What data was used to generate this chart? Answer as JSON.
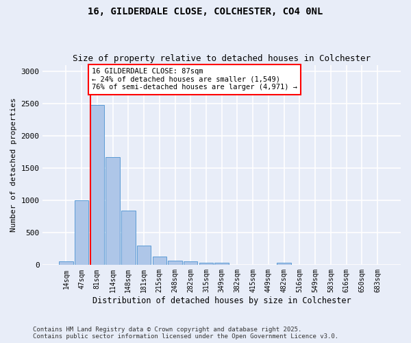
{
  "title_line1": "16, GILDERDALE CLOSE, COLCHESTER, CO4 0NL",
  "title_line2": "Size of property relative to detached houses in Colchester",
  "xlabel": "Distribution of detached houses by size in Colchester",
  "ylabel": "Number of detached properties",
  "categories": [
    "14sqm",
    "47sqm",
    "81sqm",
    "114sqm",
    "148sqm",
    "181sqm",
    "215sqm",
    "248sqm",
    "282sqm",
    "315sqm",
    "349sqm",
    "382sqm",
    "415sqm",
    "449sqm",
    "482sqm",
    "516sqm",
    "549sqm",
    "583sqm",
    "616sqm",
    "650sqm",
    "683sqm"
  ],
  "values": [
    55,
    1005,
    2480,
    1670,
    840,
    305,
    130,
    65,
    55,
    40,
    40,
    0,
    0,
    0,
    35,
    0,
    0,
    0,
    0,
    0,
    0
  ],
  "bar_color": "#aec6e8",
  "bar_edge_color": "#5b9bd5",
  "background_color": "#e8edf8",
  "grid_color": "#ffffff",
  "vline_color": "red",
  "annotation_text": "16 GILDERDALE CLOSE: 87sqm\n← 24% of detached houses are smaller (1,549)\n76% of semi-detached houses are larger (4,971) →",
  "annotation_box_color": "white",
  "annotation_box_edge_color": "red",
  "ylim": [
    0,
    3100
  ],
  "yticks": [
    0,
    500,
    1000,
    1500,
    2000,
    2500,
    3000
  ],
  "footer_line1": "Contains HM Land Registry data © Crown copyright and database right 2025.",
  "footer_line2": "Contains public sector information licensed under the Open Government Licence v3.0."
}
